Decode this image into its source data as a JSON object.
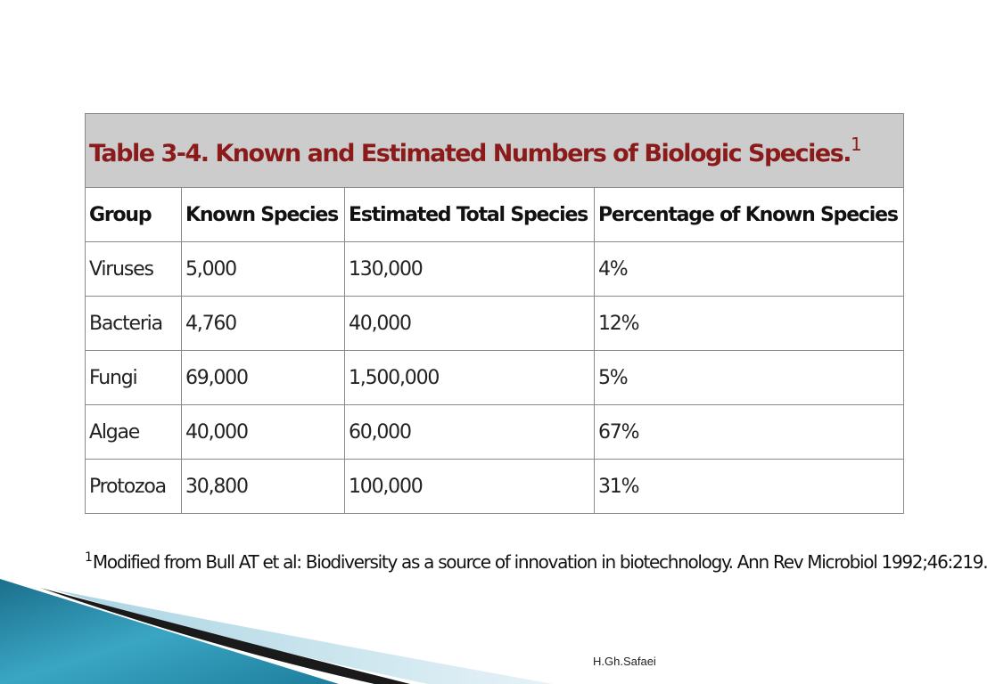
{
  "table": {
    "title": "Table 3-4. Known and Estimated Numbers of Biologic Species.",
    "title_note": "1",
    "headers": [
      "Group",
      "Known Species",
      "Estimated Total Species",
      "Percentage of Known Species"
    ],
    "rows": [
      [
        "Viruses",
        "5,000",
        "130,000",
        "4%"
      ],
      [
        "Bacteria",
        "4,760",
        "40,000",
        "12%"
      ],
      [
        "Fungi",
        "69,000",
        "1,500,000",
        "5%"
      ],
      [
        "Algae",
        "40,000",
        "60,000",
        "67%"
      ],
      [
        "Protozoa",
        "30,800",
        "100,000",
        "31%"
      ]
    ]
  },
  "footnote": {
    "marker": "1",
    "text": "Modified from Bull AT et al: Biodiversity as a source of innovation in biotechnology. Ann Rev Microbiol 1992;46:219."
  },
  "author": "H.Gh.Safaei",
  "colors": {
    "title": "#8b1a1a",
    "caption_bg": "#cccccc",
    "border": "#8a8a8a",
    "decor_teal": "#2a8fae",
    "decor_dark": "#1a1a1a"
  }
}
